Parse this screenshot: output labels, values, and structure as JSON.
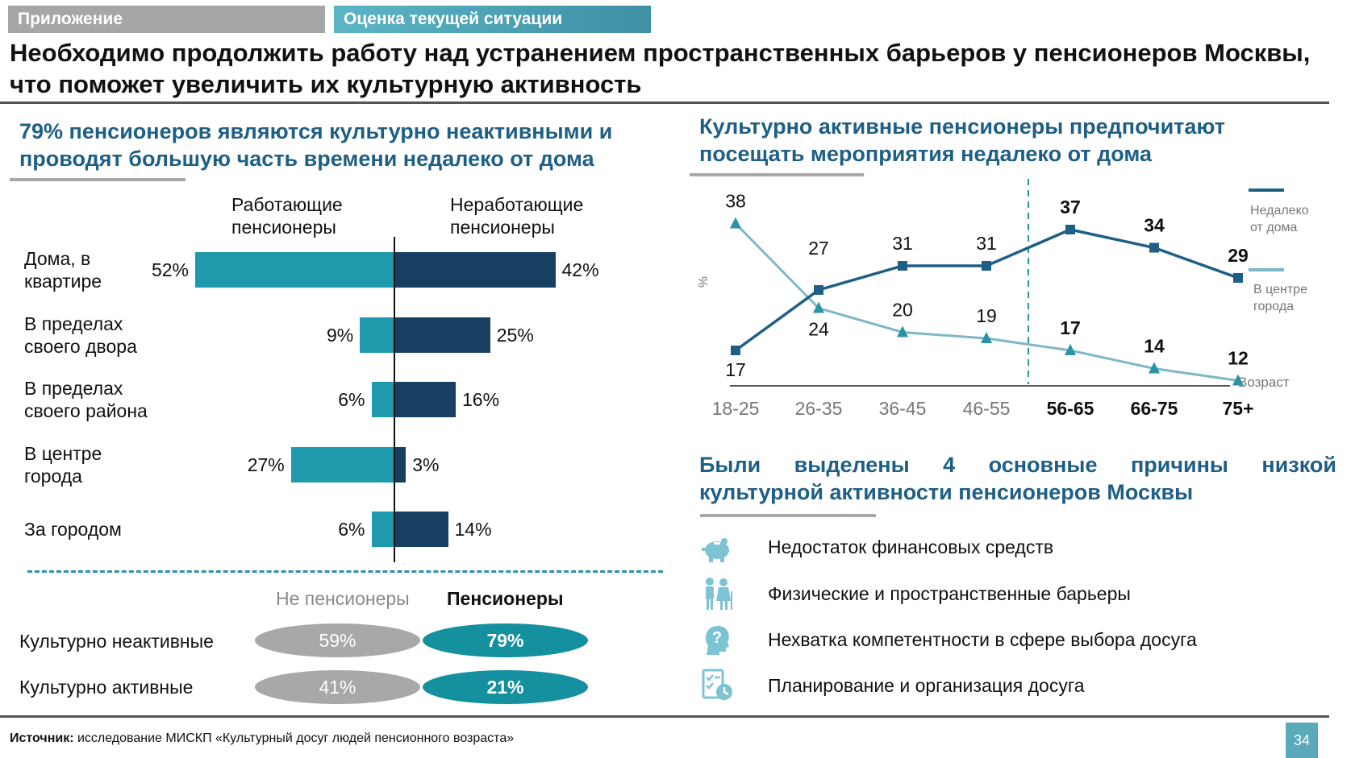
{
  "tabs": {
    "appendix": "Приложение",
    "current": "Оценка текущей ситуации"
  },
  "title": {
    "line1": "Необходимо продолжить работу над устранением пространственных барьеров у пенсионеров Москвы,",
    "line2": "что поможет увеличить их культурную активность"
  },
  "left": {
    "heading_line1": "79% пенсионеров являются культурно неактивными и",
    "heading_line2": "проводят большую часть времени недалеко от дома",
    "col_working_line1": "Работающие",
    "col_working_line2": "пенсионеры",
    "col_nonworking_line1": "Неработающие",
    "col_nonworking_line2": "пенсионеры"
  },
  "right": {
    "heading_line1": "Культурно активные пенсионеры предпочитают",
    "heading_line2": "посещать мероприятия недалеко от дома",
    "reasons_heading_line1": [
      "Были",
      "выделены",
      "4",
      "основные",
      "причины",
      "низкой"
    ],
    "reasons_heading_line2": "культурной активности пенсионеров Москвы"
  },
  "compare": {
    "header_non": "Не пенсионеры",
    "header_pens": "Пенсионеры",
    "rows": [
      {
        "label": "Культурно неактивные",
        "non": "59%",
        "pens": "79%"
      },
      {
        "label": "Культурно активные",
        "non": "41%",
        "pens": "21%"
      }
    ]
  },
  "reasons": [
    {
      "icon": "piggy-bank-icon",
      "text": "Недостаток финансовых средств"
    },
    {
      "icon": "elderly-couple-icon",
      "text": "Физические и пространственные барьеры"
    },
    {
      "icon": "question-head-icon",
      "text": "Нехватка компетентности в сфере выбора досуга"
    },
    {
      "icon": "checklist-clock-icon",
      "text": "Планирование и организация досуга"
    }
  ],
  "footer": {
    "source_label": "Источник:",
    "source_text": " исследование МИСКП «Культурный досуг людей пенсионного возраста»",
    "page_number": "34"
  },
  "colors": {
    "working": "#1f9aac",
    "nonworking": "#173f61",
    "near_home": "#1e5f86",
    "center": "#7fb7c8",
    "heading": "#1e5f86"
  },
  "chart_data": [
    {
      "type": "bar",
      "orientation": "horizontal-diverging",
      "categories_lines": [
        [
          "Дома, в",
          "квартире"
        ],
        [
          "В пределах",
          "своего двора"
        ],
        [
          "В пределах",
          "своего района"
        ],
        [
          "В центре",
          "города"
        ],
        [
          "За городом"
        ]
      ],
      "series": [
        {
          "name_lines": [
            "Работающие",
            "пенсионеры"
          ],
          "side": "left",
          "values": [
            52,
            9,
            6,
            27,
            6
          ],
          "labels": [
            "52%",
            "9%",
            "6%",
            "27%",
            "6%"
          ]
        },
        {
          "name_lines": [
            "Неработающие",
            "пенсионеры"
          ],
          "side": "right",
          "values": [
            42,
            25,
            16,
            3,
            14
          ],
          "labels": [
            "42%",
            "25%",
            "16%",
            "3%",
            "14%"
          ]
        }
      ],
      "unit": "%"
    },
    {
      "type": "line",
      "categories": [
        "18-25",
        "26-35",
        "36-45",
        "46-55",
        "56-65",
        "66-75",
        "75+"
      ],
      "bold_categories": [
        "56-65",
        "66-75",
        "75+"
      ],
      "xlabel": "Возраст",
      "ylabel": "%",
      "ylim": [
        5,
        42
      ],
      "divider_between": [
        "46-55",
        "56-65"
      ],
      "series": [
        {
          "name_lines": [
            "Недалеко",
            "от дома"
          ],
          "marker": "square",
          "color": "#1e5f86",
          "values": [
            17,
            27,
            31,
            31,
            37,
            34,
            29
          ]
        },
        {
          "name_lines": [
            "В центре",
            "города"
          ],
          "marker": "triangle",
          "color": "#7fb7c8",
          "values": [
            38,
            24,
            20,
            19,
            17,
            14,
            12
          ]
        }
      ]
    }
  ]
}
